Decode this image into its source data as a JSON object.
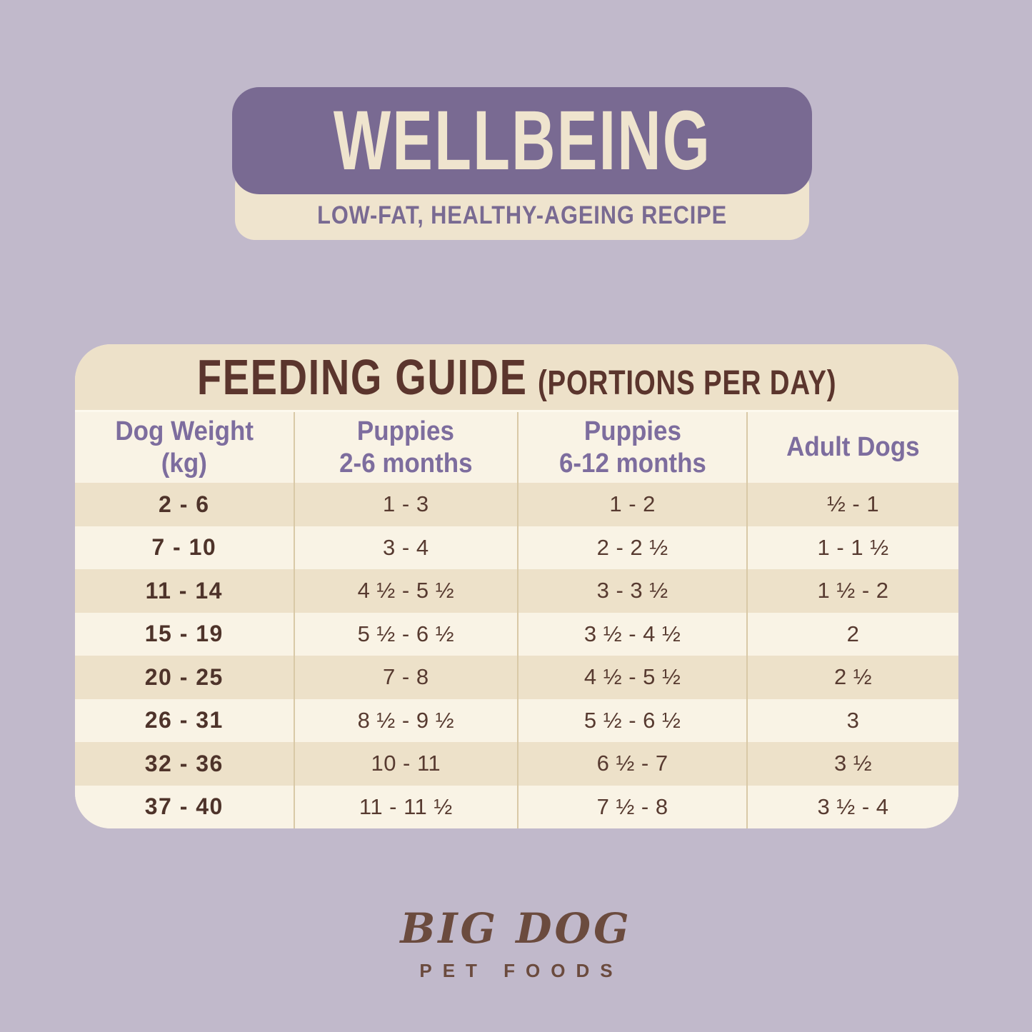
{
  "palette": {
    "bg": "#c1b9cb",
    "purple": "#796a92",
    "cream": "#efe4ce",
    "band": "#ede1c9",
    "row-light": "#f9f3e5",
    "row-tan": "#ede1c9",
    "divider": "#d9c9a7",
    "brown-dark": "#5b352d",
    "brown-text": "#573a30",
    "purple-text": "#7d6d9e",
    "brand-brown": "#6b4b3e"
  },
  "header": {
    "product_name": "WELLBEING",
    "subtitle": "LOW-FAT, HEALTHY-AGEING RECIPE"
  },
  "chart_data": {
    "type": "table",
    "title": "FEEDING GUIDE",
    "title_suffix": "(PORTIONS PER DAY)",
    "columns": [
      {
        "key": "weight",
        "line1": "Dog Weight",
        "line2": "(kg)"
      },
      {
        "key": "puppies_2_6",
        "line1": "Puppies",
        "line2": "2-6 months"
      },
      {
        "key": "puppies_6_12",
        "line1": "Puppies",
        "line2": "6-12 months"
      },
      {
        "key": "adult",
        "line1": "Adult Dogs",
        "line2": ""
      }
    ],
    "rows": [
      {
        "weight": "2 - 6",
        "puppies_2_6": "1 - 3",
        "puppies_6_12": "1 - 2",
        "adult": "½ - 1"
      },
      {
        "weight": "7 - 10",
        "puppies_2_6": "3 - 4",
        "puppies_6_12": "2 - 2 ½",
        "adult": "1 - 1 ½"
      },
      {
        "weight": "11 - 14",
        "puppies_2_6": "4 ½ - 5 ½",
        "puppies_6_12": "3 - 3 ½",
        "adult": "1 ½ - 2"
      },
      {
        "weight": "15 - 19",
        "puppies_2_6": "5 ½ - 6 ½",
        "puppies_6_12": "3 ½ - 4 ½",
        "adult": "2"
      },
      {
        "weight": "20 - 25",
        "puppies_2_6": "7 - 8",
        "puppies_6_12": "4 ½ - 5 ½",
        "adult": "2 ½"
      },
      {
        "weight": "26 - 31",
        "puppies_2_6": "8 ½ - 9 ½",
        "puppies_6_12": "5 ½ - 6 ½",
        "adult": "3"
      },
      {
        "weight": "32 - 36",
        "puppies_2_6": "10 - 11",
        "puppies_6_12": "6 ½ - 7",
        "adult": "3 ½"
      },
      {
        "weight": "37 - 40",
        "puppies_2_6": "11 - 11 ½",
        "puppies_6_12": "7 ½ - 8",
        "adult": "3 ½ - 4"
      }
    ]
  },
  "footer": {
    "brand_name": "BIG DOG",
    "brand_tagline": "PET FOODS"
  }
}
